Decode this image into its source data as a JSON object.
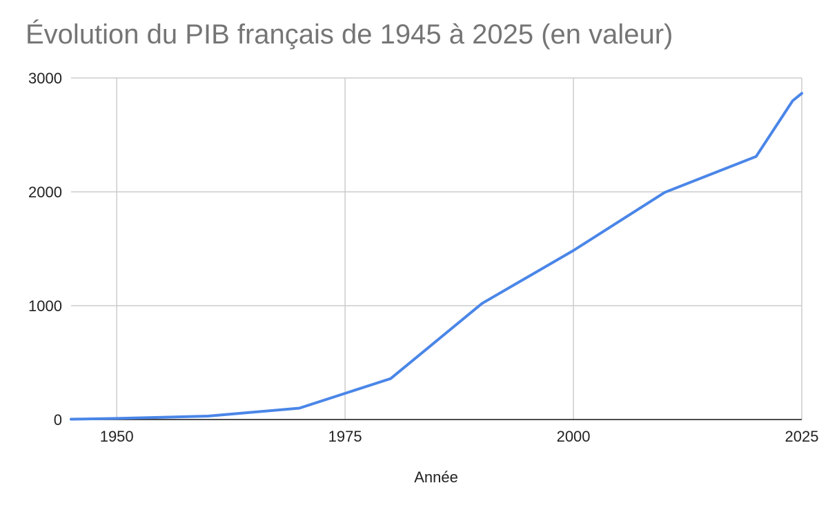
{
  "chart_data": {
    "type": "line",
    "title": "Évolution du PIB français de 1945 à 2025 (en valeur)",
    "xlabel": "Année",
    "ylabel": "",
    "xlim": [
      1945,
      2025
    ],
    "ylim": [
      0,
      3000
    ],
    "x_ticks": [
      1950,
      1975,
      2000,
      2025
    ],
    "y_ticks": [
      0,
      1000,
      2000,
      3000
    ],
    "grid": true,
    "legend": "none",
    "series": [
      {
        "color": "#4a86e8",
        "points": [
          {
            "x": 1945,
            "y": 3
          },
          {
            "x": 1950,
            "y": 10
          },
          {
            "x": 1960,
            "y": 30
          },
          {
            "x": 1970,
            "y": 100
          },
          {
            "x": 1980,
            "y": 360
          },
          {
            "x": 1990,
            "y": 1020
          },
          {
            "x": 2000,
            "y": 1485
          },
          {
            "x": 2010,
            "y": 1995
          },
          {
            "x": 2020,
            "y": 2310
          },
          {
            "x": 2024,
            "y": 2800
          },
          {
            "x": 2025,
            "y": 2865
          }
        ]
      }
    ]
  }
}
